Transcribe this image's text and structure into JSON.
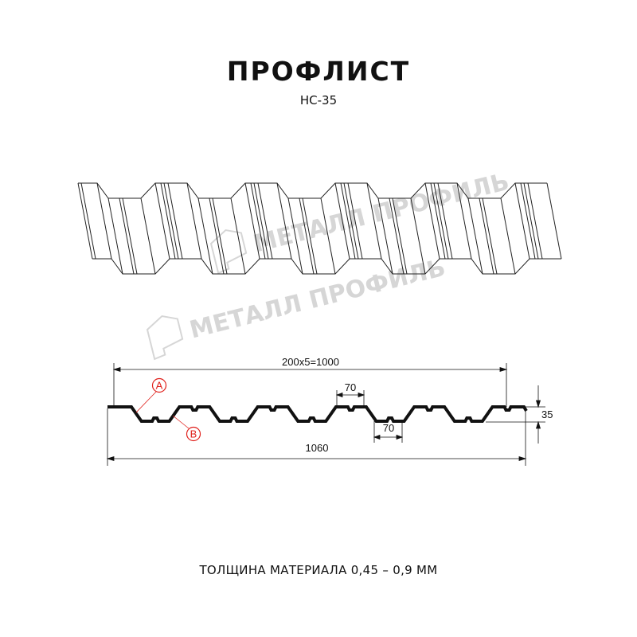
{
  "title": "ПРОФЛИСТ",
  "subtitle": "НС-35",
  "watermark": "МЕТАЛЛ ПРОФИЛЬ",
  "dimensions": {
    "pitch_total": "200x5=1000",
    "overall_width": "1060",
    "crest_width": "70",
    "trough_width": "70",
    "height": "35"
  },
  "callouts": {
    "a": "A",
    "b": "B"
  },
  "footer": "ТОЛЩИНА МАТЕРИАЛА 0,45 – 0,9 ММ",
  "colors": {
    "line": "#111111",
    "callout": "#e0201b",
    "watermark": "#d6d6d6"
  }
}
